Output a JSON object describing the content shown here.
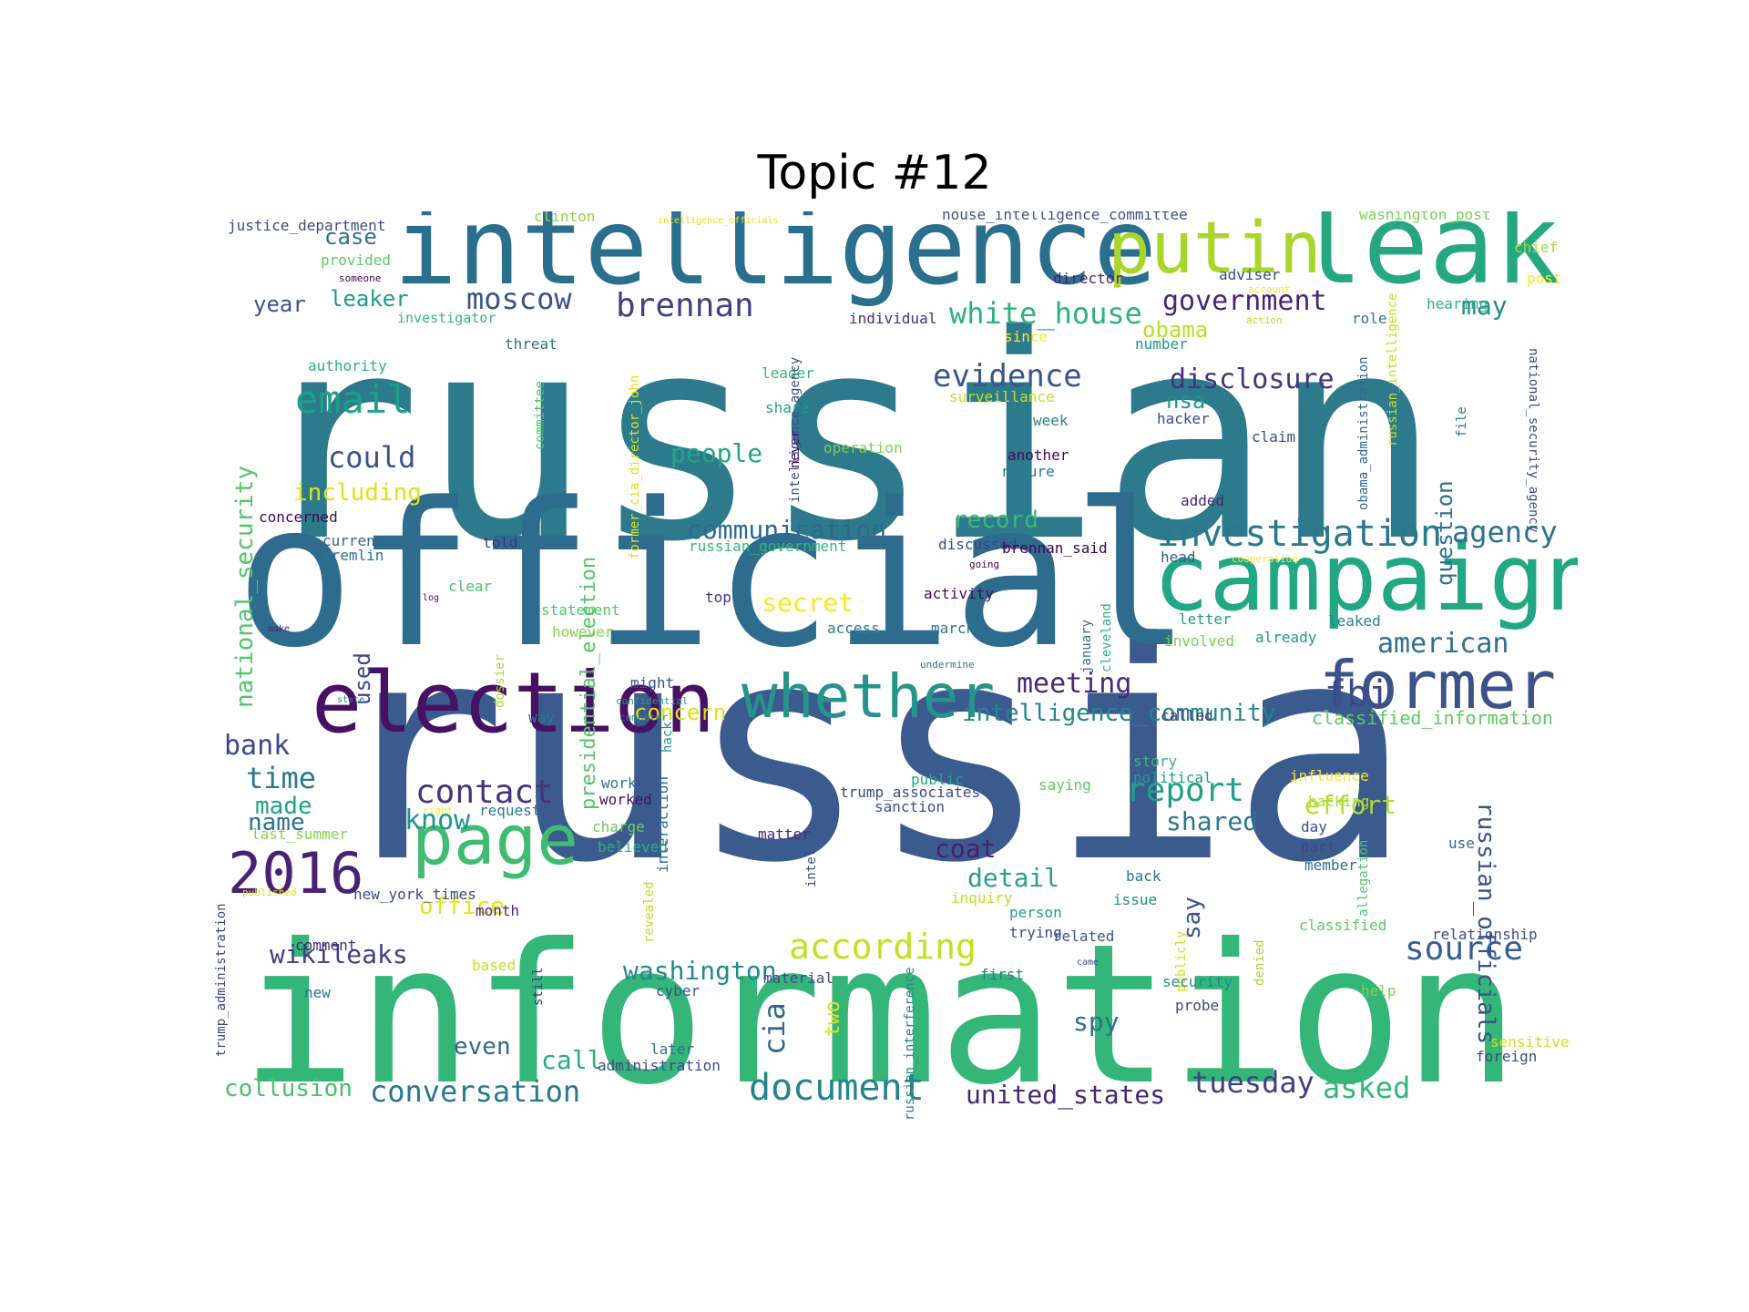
{
  "title": "Topic #12",
  "palette": [
    "#440154",
    "#482878",
    "#3e4989",
    "#31688e",
    "#26828e",
    "#1f9e89",
    "#35b779",
    "#6ece58",
    "#b5de2b",
    "#fde725"
  ],
  "cloud": {
    "words": [
      {
        "text": "russian",
        "color": "#2c7a8c"
      },
      {
        "text": "russia",
        "color": "#3b5a8e"
      },
      {
        "text": "official",
        "color": "#2e6c8e"
      },
      {
        "text": "information",
        "color": "#34b679"
      },
      {
        "text": "intelligence",
        "color": "#2a6f8e"
      },
      {
        "text": "leak",
        "color": "#25a882"
      },
      {
        "text": "putin",
        "color": "#a9d62a"
      },
      {
        "text": "campaign",
        "color": "#22a785"
      },
      {
        "text": "election",
        "color": "#471062"
      },
      {
        "text": "former",
        "color": "#3b528b"
      },
      {
        "text": "whether",
        "color": "#26948a"
      },
      {
        "text": "page",
        "color": "#40bc72"
      },
      {
        "text": "2016",
        "color": "#482374"
      },
      {
        "text": "according",
        "color": "#c5e021"
      },
      {
        "text": "investigation",
        "color": "#2a788e"
      },
      {
        "text": "email",
        "color": "#1f9e89"
      },
      {
        "text": "evidence",
        "color": "#3a548c"
      },
      {
        "text": "document",
        "color": "#25838e"
      },
      {
        "text": "contact",
        "color": "#46337e"
      },
      {
        "text": "source",
        "color": "#355f8d"
      },
      {
        "text": "report",
        "color": "#1fa088"
      },
      {
        "text": "brennan",
        "color": "#433e85"
      },
      {
        "text": "moscow",
        "color": "#3b528b"
      },
      {
        "text": "government",
        "color": "#482475"
      },
      {
        "text": "white_house",
        "color": "#2db27d"
      },
      {
        "text": "agency",
        "color": "#2c718e"
      },
      {
        "text": "could",
        "color": "#3b528b"
      },
      {
        "text": "disclosure",
        "color": "#46337e"
      },
      {
        "text": "conversation",
        "color": "#2a788e"
      },
      {
        "text": "tuesday",
        "color": "#433e85"
      },
      {
        "text": "communication",
        "color": "#31688e"
      },
      {
        "text": "washington",
        "color": "#23898e"
      },
      {
        "text": "meeting",
        "color": "#482878"
      },
      {
        "text": "american",
        "color": "#2c718e"
      },
      {
        "text": "intelligence_community",
        "color": "#25858e"
      },
      {
        "text": "asked",
        "color": "#35b779"
      },
      {
        "text": "united_states",
        "color": "#482576"
      },
      {
        "text": "secret",
        "color": "#fde725"
      },
      {
        "text": "record",
        "color": "#3aba76"
      },
      {
        "text": "people",
        "color": "#22a785"
      },
      {
        "text": "including",
        "color": "#dde318"
      },
      {
        "text": "time",
        "color": "#2a788e"
      },
      {
        "text": "know",
        "color": "#1f968b"
      },
      {
        "text": "made",
        "color": "#1fa187"
      },
      {
        "text": "name",
        "color": "#2d718e"
      },
      {
        "text": "bank",
        "color": "#3e4989"
      },
      {
        "text": "wikileaks",
        "color": "#433e85"
      },
      {
        "text": "detail",
        "color": "#2a9d8e"
      },
      {
        "text": "coat",
        "color": "#482071"
      },
      {
        "text": "effort",
        "color": "#b2dd2d"
      },
      {
        "text": "shared",
        "color": "#2a788e"
      },
      {
        "text": "fbi",
        "color": "#3e4989"
      },
      {
        "text": "cia",
        "color": "#31688e"
      },
      {
        "text": "spy",
        "color": "#2d708e"
      },
      {
        "text": "even",
        "color": "#31688e"
      },
      {
        "text": "call",
        "color": "#29af7f"
      },
      {
        "text": "collusion",
        "color": "#4ac16d"
      },
      {
        "text": "office",
        "color": "#e5e419"
      },
      {
        "text": "concern",
        "color": "#d8e219"
      },
      {
        "text": "case",
        "color": "#2c718e"
      },
      {
        "text": "leaker",
        "color": "#1f9a8a"
      },
      {
        "text": "year",
        "color": "#3b528b"
      },
      {
        "text": "may",
        "color": "#23898e"
      },
      {
        "text": "obama",
        "color": "#b8de29"
      },
      {
        "text": "nsa",
        "color": "#1f948c"
      },
      {
        "text": "national_security",
        "color": "#52c569"
      },
      {
        "text": "presidential_election",
        "color": "#54c568"
      },
      {
        "text": "russian_officials",
        "color": "#3b528b"
      },
      {
        "text": "question",
        "color": "#2c718e"
      },
      {
        "text": "say",
        "color": "#3b528b"
      },
      {
        "text": "used",
        "color": "#3e4989"
      },
      {
        "text": "two",
        "color": "#dde318"
      },
      {
        "text": "classified_information",
        "color": "#5ec962"
      },
      {
        "text": "justice_department",
        "color": "#3e4989"
      },
      {
        "text": "clinton",
        "color": "#8fd744"
      },
      {
        "text": "intelligence_officials",
        "color": "#e2e418"
      },
      {
        "text": "house_intelligence_committee",
        "color": "#3b528b"
      },
      {
        "text": "washington_post",
        "color": "#7ad151"
      },
      {
        "text": "chief",
        "color": "#a2da37"
      },
      {
        "text": "provided",
        "color": "#5ec962"
      },
      {
        "text": "someone",
        "color": "#440154"
      },
      {
        "text": "director",
        "color": "#482475"
      },
      {
        "text": "adviser",
        "color": "#414487"
      },
      {
        "text": "account",
        "color": "#fde725"
      },
      {
        "text": "post",
        "color": "#fde725"
      },
      {
        "text": "investigator",
        "color": "#37b878"
      },
      {
        "text": "individual",
        "color": "#472f7d"
      },
      {
        "text": "action",
        "color": "#b5de2b"
      },
      {
        "text": "role",
        "color": "#2a788e"
      },
      {
        "text": "hearing",
        "color": "#2ab07f"
      },
      {
        "text": "threat",
        "color": "#2a788e"
      },
      {
        "text": "since",
        "color": "#fde725"
      },
      {
        "text": "number",
        "color": "#1f948c"
      },
      {
        "text": "authority",
        "color": "#29af7f"
      },
      {
        "text": "committee",
        "color": "#4ac16d"
      },
      {
        "text": "leader",
        "color": "#35b779"
      },
      {
        "text": "surveillance",
        "color": "#c2df23"
      },
      {
        "text": "share",
        "color": "#1f9e89"
      },
      {
        "text": "week",
        "color": "#26828e"
      },
      {
        "text": "hacker",
        "color": "#3e4989"
      },
      {
        "text": "operation",
        "color": "#7ad151"
      },
      {
        "text": "never",
        "color": "#440154"
      },
      {
        "text": "another",
        "color": "#46085c"
      },
      {
        "text": "nature",
        "color": "#2a788e"
      },
      {
        "text": "claim",
        "color": "#3e4989"
      },
      {
        "text": "added",
        "color": "#482475"
      },
      {
        "text": "concerned",
        "color": "#450559"
      },
      {
        "text": "current",
        "color": "#31688e"
      },
      {
        "text": "kremlin",
        "color": "#2c718e"
      },
      {
        "text": "told",
        "color": "#46337e"
      },
      {
        "text": "russian_government",
        "color": "#35b779"
      },
      {
        "text": "discussed",
        "color": "#404688"
      },
      {
        "text": "brennan_said",
        "color": "#440154"
      },
      {
        "text": "going",
        "color": "#440154"
      },
      {
        "text": "head",
        "color": "#355f8d"
      },
      {
        "text": "cooperation",
        "color": "#fde725"
      },
      {
        "text": "clear",
        "color": "#4ac16d"
      },
      {
        "text": "log",
        "color": "#440154"
      },
      {
        "text": "activity",
        "color": "#46085c"
      },
      {
        "text": "top",
        "color": "#46337e"
      },
      {
        "text": "statement",
        "color": "#52c569"
      },
      {
        "text": "however",
        "color": "#86d549"
      },
      {
        "text": "access",
        "color": "#26828e"
      },
      {
        "text": "march",
        "color": "#2a788e"
      },
      {
        "text": "letter",
        "color": "#1f9a8a"
      },
      {
        "text": "leaked",
        "color": "#26828e"
      },
      {
        "text": "involved",
        "color": "#7ad151"
      },
      {
        "text": "already",
        "color": "#1f968b"
      },
      {
        "text": "make",
        "color": "#482878"
      },
      {
        "text": "might",
        "color": "#3b528b"
      },
      {
        "text": "undermine",
        "color": "#2a788e"
      },
      {
        "text": "state",
        "color": "#26828e"
      },
      {
        "text": "confidential",
        "color": "#1f9e89"
      },
      {
        "text": "way",
        "color": "#2a788e"
      },
      {
        "text": "computer",
        "color": "#26828e"
      },
      {
        "text": "hack",
        "color": "#1f948c"
      },
      {
        "text": "called",
        "color": "#46337e"
      },
      {
        "text": "story",
        "color": "#35b779"
      },
      {
        "text": "political",
        "color": "#1f9e89"
      },
      {
        "text": "influence",
        "color": "#fde725"
      },
      {
        "text": "work",
        "color": "#2a788e"
      },
      {
        "text": "worked",
        "color": "#471063"
      },
      {
        "text": "public",
        "color": "#22a785"
      },
      {
        "text": "trump_associates",
        "color": "#3e4989"
      },
      {
        "text": "sanction",
        "color": "#3b528b"
      },
      {
        "text": "saying",
        "color": "#5ec962"
      },
      {
        "text": "hacking",
        "color": "#addc30"
      },
      {
        "text": "right",
        "color": "#fde725"
      },
      {
        "text": "request",
        "color": "#2a788e"
      },
      {
        "text": "charge",
        "color": "#6ccd5a"
      },
      {
        "text": "last_summer",
        "color": "#86d549"
      },
      {
        "text": "believed",
        "color": "#2ab07f"
      },
      {
        "text": "interaction",
        "color": "#2c718e"
      },
      {
        "text": "matter",
        "color": "#482878"
      },
      {
        "text": "intel",
        "color": "#3e4989"
      },
      {
        "text": "day",
        "color": "#3e4989"
      },
      {
        "text": "part",
        "color": "#414487"
      },
      {
        "text": "member",
        "color": "#2c718e"
      },
      {
        "text": "use",
        "color": "#31688e"
      },
      {
        "text": "allegation",
        "color": "#52c569"
      },
      {
        "text": "published",
        "color": "#dde318"
      },
      {
        "text": "new_york_times",
        "color": "#3e4989"
      },
      {
        "text": "month",
        "color": "#482475"
      },
      {
        "text": "revealed",
        "color": "#b8de29"
      },
      {
        "text": "inquiry",
        "color": "#c0df25"
      },
      {
        "text": "back",
        "color": "#2a788e"
      },
      {
        "text": "issue",
        "color": "#23898e"
      },
      {
        "text": "person",
        "color": "#1fa088"
      },
      {
        "text": "trying",
        "color": "#3e4989"
      },
      {
        "text": "related",
        "color": "#3b528b"
      },
      {
        "text": "classified",
        "color": "#5ec962"
      },
      {
        "text": "relationship",
        "color": "#3e4989"
      },
      {
        "text": "comment",
        "color": "#482878"
      },
      {
        "text": "based",
        "color": "#c8e020"
      },
      {
        "text": "still",
        "color": "#46337e"
      },
      {
        "text": "cyber",
        "color": "#3b528b"
      },
      {
        "text": "material",
        "color": "#3e4989"
      },
      {
        "text": "first",
        "color": "#2a788e"
      },
      {
        "text": "came",
        "color": "#3e4989"
      },
      {
        "text": "publicly",
        "color": "#d0e11c"
      },
      {
        "text": "denied",
        "color": "#a5db36"
      },
      {
        "text": "security",
        "color": "#23898e"
      },
      {
        "text": "help",
        "color": "#7ad151"
      },
      {
        "text": "probe",
        "color": "#414487"
      },
      {
        "text": "new",
        "color": "#2c718e"
      },
      {
        "text": "later",
        "color": "#2c718e"
      },
      {
        "text": "administration",
        "color": "#3e4989"
      },
      {
        "text": "sensitive",
        "color": "#d0e11c"
      },
      {
        "text": "foreign",
        "color": "#3e4989"
      },
      {
        "text": "trump_administration",
        "color": "#414487"
      },
      {
        "text": "former_cia_director_john",
        "color": "#e2e418"
      },
      {
        "text": "intelligence_agency",
        "color": "#3e4989"
      },
      {
        "text": "obama_administration",
        "color": "#31688e"
      },
      {
        "text": "russian_intelligence",
        "color": "#c8e020"
      },
      {
        "text": "national_security_agency",
        "color": "#3e4989"
      },
      {
        "text": "file",
        "color": "#2c718e"
      },
      {
        "text": "january",
        "color": "#2c718e"
      },
      {
        "text": "cleveland",
        "color": "#2ab07f"
      },
      {
        "text": "dossier",
        "color": "#a8db34"
      },
      {
        "text": "russian_interference",
        "color": "#26828e"
      }
    ]
  }
}
